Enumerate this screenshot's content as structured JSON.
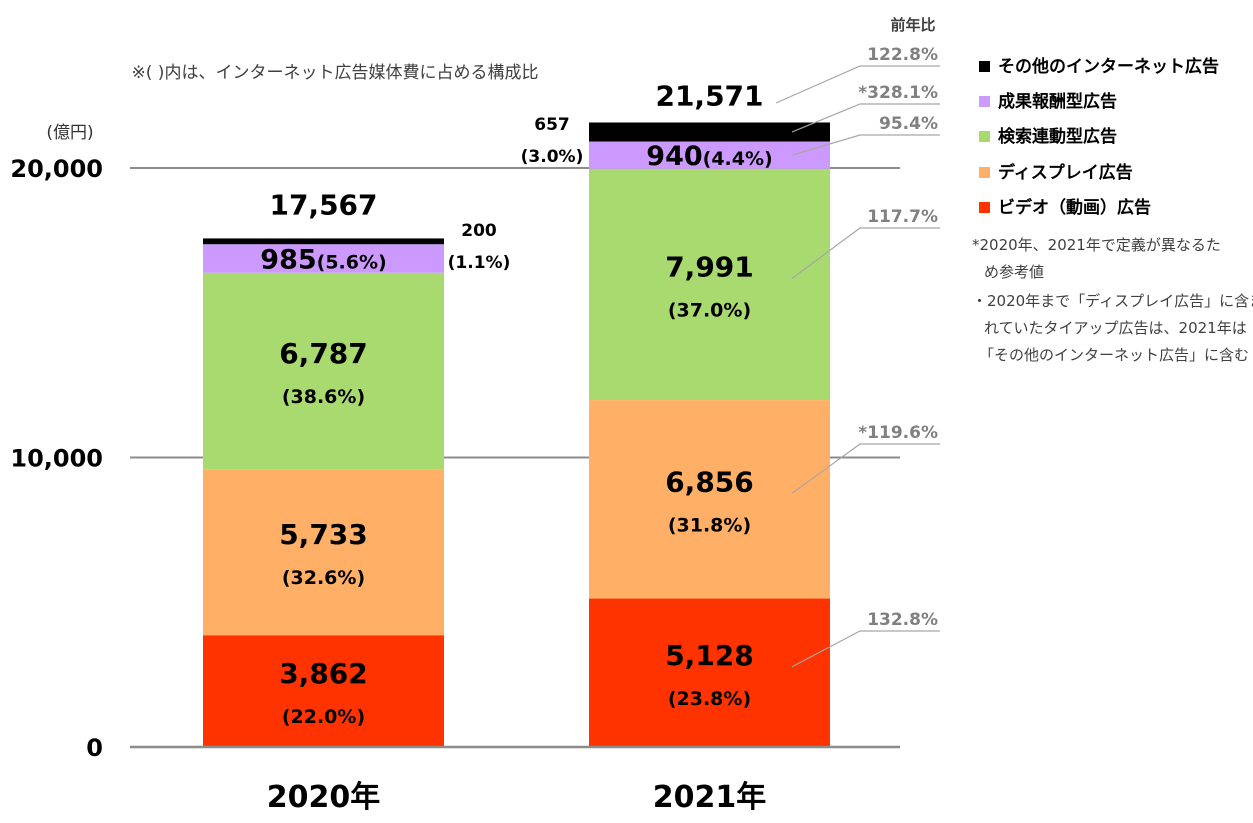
{
  "chart_data": {
    "type": "bar",
    "stacked": true,
    "note": "※(  )内は、インターネット広告媒体費に占める構成比",
    "unit": "(億円)",
    "yoy_header": "前年比",
    "categories": [
      "2020年",
      "2021年"
    ],
    "ylim": [
      0,
      20000
    ],
    "yticks": [
      {
        "value": 0,
        "label": "0"
      },
      {
        "value": 10000,
        "label": "10,000"
      },
      {
        "value": 20000,
        "label": "20,000"
      }
    ],
    "grid": true,
    "totals": [
      {
        "value": 17567,
        "label": "17,567"
      },
      {
        "value": 21571,
        "label": "21,571"
      }
    ],
    "series": [
      {
        "name": "ビデオ（動画）広告",
        "color": "#ff3300",
        "values": [
          3862,
          5128
        ],
        "labels": [
          "3,862",
          "5,128"
        ],
        "shares": [
          "(22.0%)",
          "(23.8%)"
        ],
        "yoy": "132.8%"
      },
      {
        "name": "ディスプレイ広告",
        "color": "#ffb066",
        "values": [
          5733,
          6856
        ],
        "labels": [
          "5,733",
          "6,856"
        ],
        "shares": [
          "(32.6%)",
          "(31.8%)"
        ],
        "yoy": "*119.6%"
      },
      {
        "name": "検索連動型広告",
        "color": "#a8da70",
        "values": [
          6787,
          7991
        ],
        "labels": [
          "6,787",
          "7,991"
        ],
        "shares": [
          "(38.6%)",
          "(37.0%)"
        ],
        "yoy": "117.7%"
      },
      {
        "name": "成果報酬型広告",
        "color": "#cc99ff",
        "values": [
          985,
          940
        ],
        "labels": [
          "985",
          "940"
        ],
        "shares": [
          "(5.6%)",
          "(4.4%)"
        ],
        "yoy": "95.4%"
      },
      {
        "name": "その他のインターネット広告",
        "color": "#000000",
        "values": [
          200,
          657
        ],
        "labels": [
          "200",
          "657"
        ],
        "shares": [
          "(1.1%)",
          "(3.0%)"
        ],
        "yoy": "*328.1%"
      }
    ],
    "total_yoy": "122.8%",
    "legend_order": [
      "その他のインターネット広告",
      "成果報酬型広告",
      "検索連動型広告",
      "ディスプレイ広告",
      "ビデオ（動画）広告"
    ],
    "footnotes": [
      [
        "*2020年、2021年で定義が異なるた",
        "め参考値"
      ],
      [
        "・2020年まで「ディスプレイ広告」に含ま",
        "れていたタイアップ広告は、2021年は",
        "「その他のインターネット広告」に含む"
      ]
    ],
    "colors": {
      "grid": "#8c8c8c",
      "leader": "#a6a6a6",
      "yoy_text": "#808080",
      "axis_text": "#000000"
    }
  }
}
